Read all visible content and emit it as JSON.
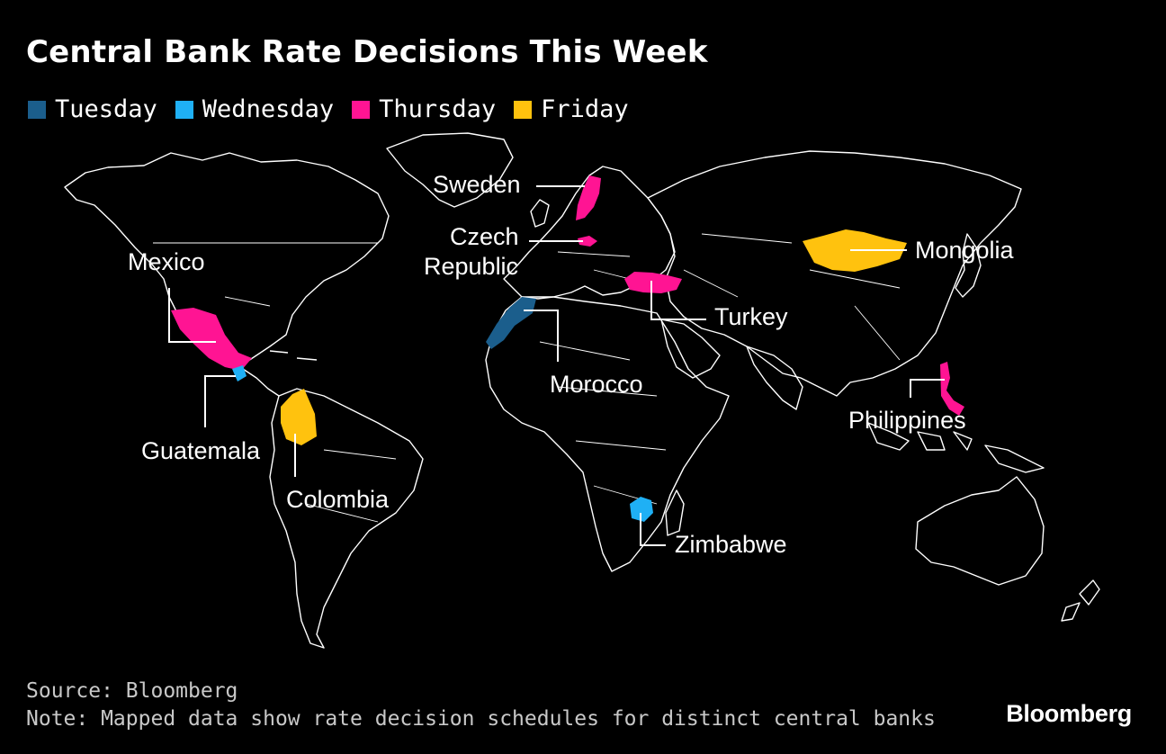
{
  "title": "Central Bank Rate Decisions This Week",
  "legend": [
    {
      "label": "Tuesday",
      "color": "#1b5e8c"
    },
    {
      "label": "Wednesday",
      "color": "#1fb0f5"
    },
    {
      "label": "Thursday",
      "color": "#ff1493"
    },
    {
      "label": "Friday",
      "color": "#ffc20e"
    }
  ],
  "countries": [
    {
      "name": "Sweden",
      "day": "Thursday"
    },
    {
      "name": "Czech Republic",
      "day": "Thursday"
    },
    {
      "name": "Mexico",
      "day": "Thursday"
    },
    {
      "name": "Turkey",
      "day": "Thursday"
    },
    {
      "name": "Philippines",
      "day": "Thursday"
    },
    {
      "name": "Mongolia",
      "day": "Friday"
    },
    {
      "name": "Colombia",
      "day": "Friday"
    },
    {
      "name": "Morocco",
      "day": "Tuesday"
    },
    {
      "name": "Guatemala",
      "day": "Wednesday"
    },
    {
      "name": "Zimbabwe",
      "day": "Wednesday"
    }
  ],
  "labels": {
    "sweden": "Sweden",
    "czech_line1": "Czech",
    "czech_line2": "Republic",
    "mexico": "Mexico",
    "turkey": "Turkey",
    "mongolia": "Mongolia",
    "morocco": "Morocco",
    "philippines": "Philippines",
    "guatemala": "Guatemala",
    "colombia": "Colombia",
    "zimbabwe": "Zimbabwe"
  },
  "footer": {
    "source": "Source: Bloomberg",
    "note": "Note: Mapped data show rate decision schedules for distinct central banks"
  },
  "brand": "Bloomberg"
}
